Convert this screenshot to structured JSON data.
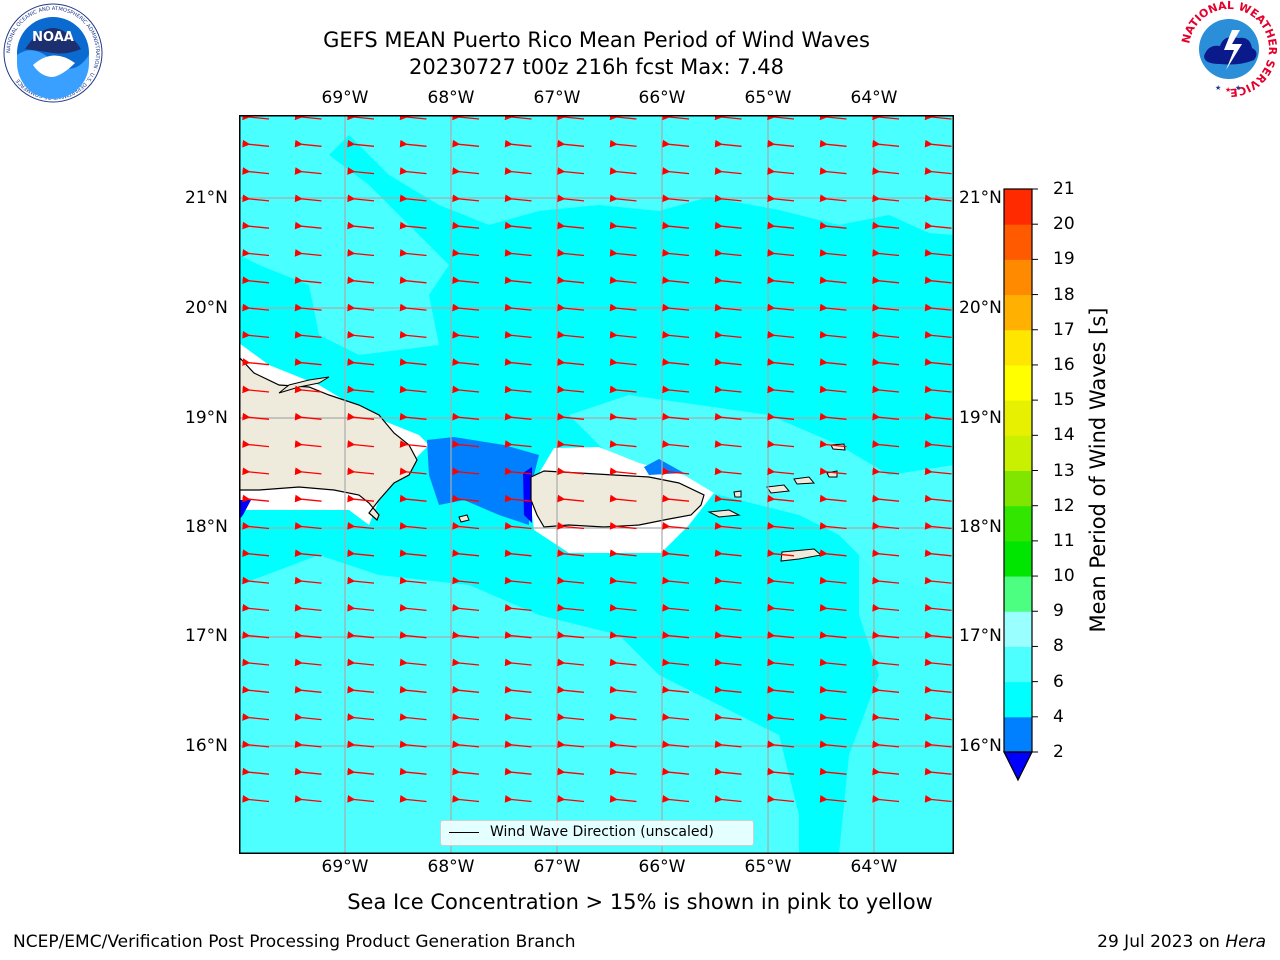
{
  "header": {
    "title_line1": "GEFS MEAN Puerto Rico Mean Period of Wind Waves",
    "title_line2": "20230727 t00z 216h fcst   Max: 7.48",
    "noaa_logo_text": "NOAA",
    "noaa_ring_text": "NATIONAL OCEANIC AND ATMOSPHERIC ADMINISTRATION · U.S. DEPARTMENT OF COMMERCE",
    "nws_ring_text": "NATIONAL WEATHER SERVICE"
  },
  "map": {
    "lon_labels": [
      "69°W",
      "68°W",
      "67°W",
      "66°W",
      "65°W",
      "64°W"
    ],
    "lat_labels": [
      "21°N",
      "20°N",
      "19°N",
      "18°N",
      "17°N",
      "16°N"
    ],
    "ocean_color": "#00ffff",
    "light_region_color": "#4dffff",
    "deep_blue_color": "#0080ff",
    "land_color": "#efebdc",
    "arrow_color": "#ff0000",
    "wind_direction": "from east (arrows point west)",
    "legend_label": "Wind Wave Direction (unscaled)"
  },
  "colorbar": {
    "label": "Mean Period of Wind Waves [s]",
    "ticks": [
      "2",
      "4",
      "6",
      "8",
      "9",
      "10",
      "11",
      "12",
      "13",
      "14",
      "15",
      "16",
      "17",
      "18",
      "19",
      "20",
      "21"
    ],
    "colors": [
      "#0080ff",
      "#00ffff",
      "#4dffff",
      "#99ffff",
      "#4dff80",
      "#00e600",
      "#33e600",
      "#80e600",
      "#c8f000",
      "#e6f000",
      "#ffff00",
      "#ffe600",
      "#ffb000",
      "#ff8a00",
      "#ff5a00",
      "#ff2a00"
    ],
    "under_color": "#0000ff"
  },
  "footer": {
    "note": "Sea Ice Concentration > 15% is shown in pink to yellow",
    "credit": "NCEP/EMC/Verification Post Processing Product Generation Branch",
    "date_prefix": "29 Jul 2023 on ",
    "date_host": "Hera"
  }
}
